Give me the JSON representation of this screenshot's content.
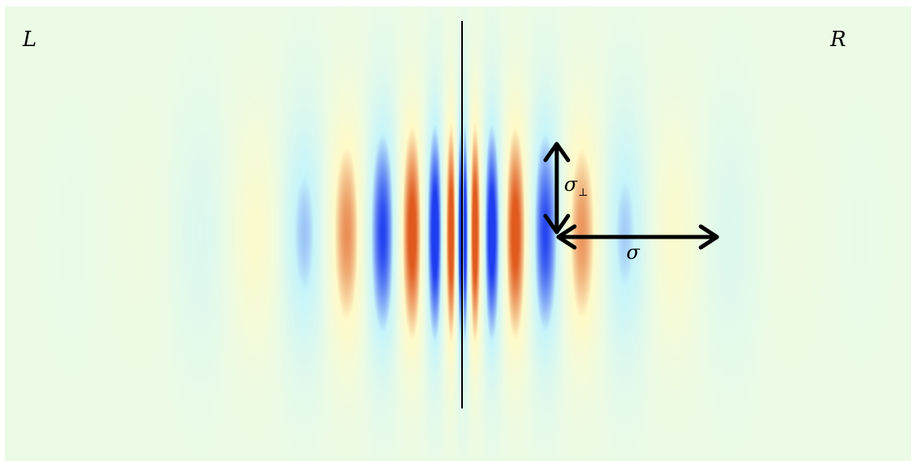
{
  "labels": {
    "left": "L",
    "right": "R",
    "sigma_perp": "σ",
    "sigma_perp_sub": "⊥",
    "sigma": "σ"
  },
  "colors": {
    "background": "#ebfbe6",
    "positive": "#e05a1e",
    "negative": "#1e3cf0",
    "interface_line": "#000000",
    "arrows": "#000000"
  }
}
